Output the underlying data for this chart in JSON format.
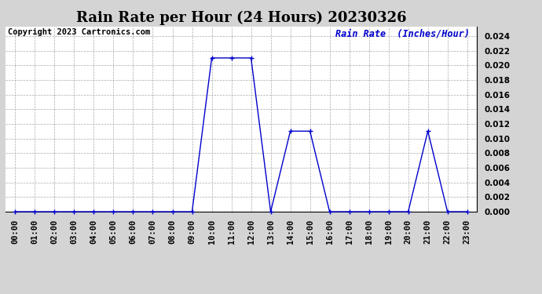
{
  "title": "Rain Rate per Hour (24 Hours) 20230326",
  "copyright_text": "Copyright 2023 Cartronics.com",
  "legend_label": "Rain Rate  (Inches/Hour)",
  "x_labels": [
    "00:00",
    "01:00",
    "02:00",
    "03:00",
    "04:00",
    "05:00",
    "06:00",
    "07:00",
    "08:00",
    "09:00",
    "10:00",
    "11:00",
    "12:00",
    "13:00",
    "14:00",
    "15:00",
    "16:00",
    "17:00",
    "18:00",
    "19:00",
    "20:00",
    "21:00",
    "22:00",
    "23:00"
  ],
  "x_values": [
    0,
    1,
    2,
    3,
    4,
    5,
    6,
    7,
    8,
    9,
    10,
    11,
    12,
    13,
    14,
    15,
    16,
    17,
    18,
    19,
    20,
    21,
    22,
    23
  ],
  "y_values": [
    0,
    0,
    0,
    0,
    0,
    0,
    0,
    0,
    0,
    0,
    0.021,
    0.021,
    0.021,
    0,
    0.011,
    0.011,
    0,
    0,
    0,
    0,
    0,
    0.011,
    0,
    0
  ],
  "line_color": "#0000cc",
  "marker_color": "#0000cc",
  "grid_color": "#aaaaaa",
  "bg_color": "#d4d4d4",
  "plot_bg_color": "#ffffff",
  "ylim_min": 0,
  "ylim_max": 0.0253,
  "yticks": [
    0.0,
    0.002,
    0.004,
    0.006,
    0.008,
    0.01,
    0.012,
    0.014,
    0.016,
    0.018,
    0.02,
    0.022,
    0.024
  ],
  "title_fontsize": 13,
  "tick_fontsize": 7.5,
  "copyright_fontsize": 7.5,
  "legend_fontsize": 8.5
}
